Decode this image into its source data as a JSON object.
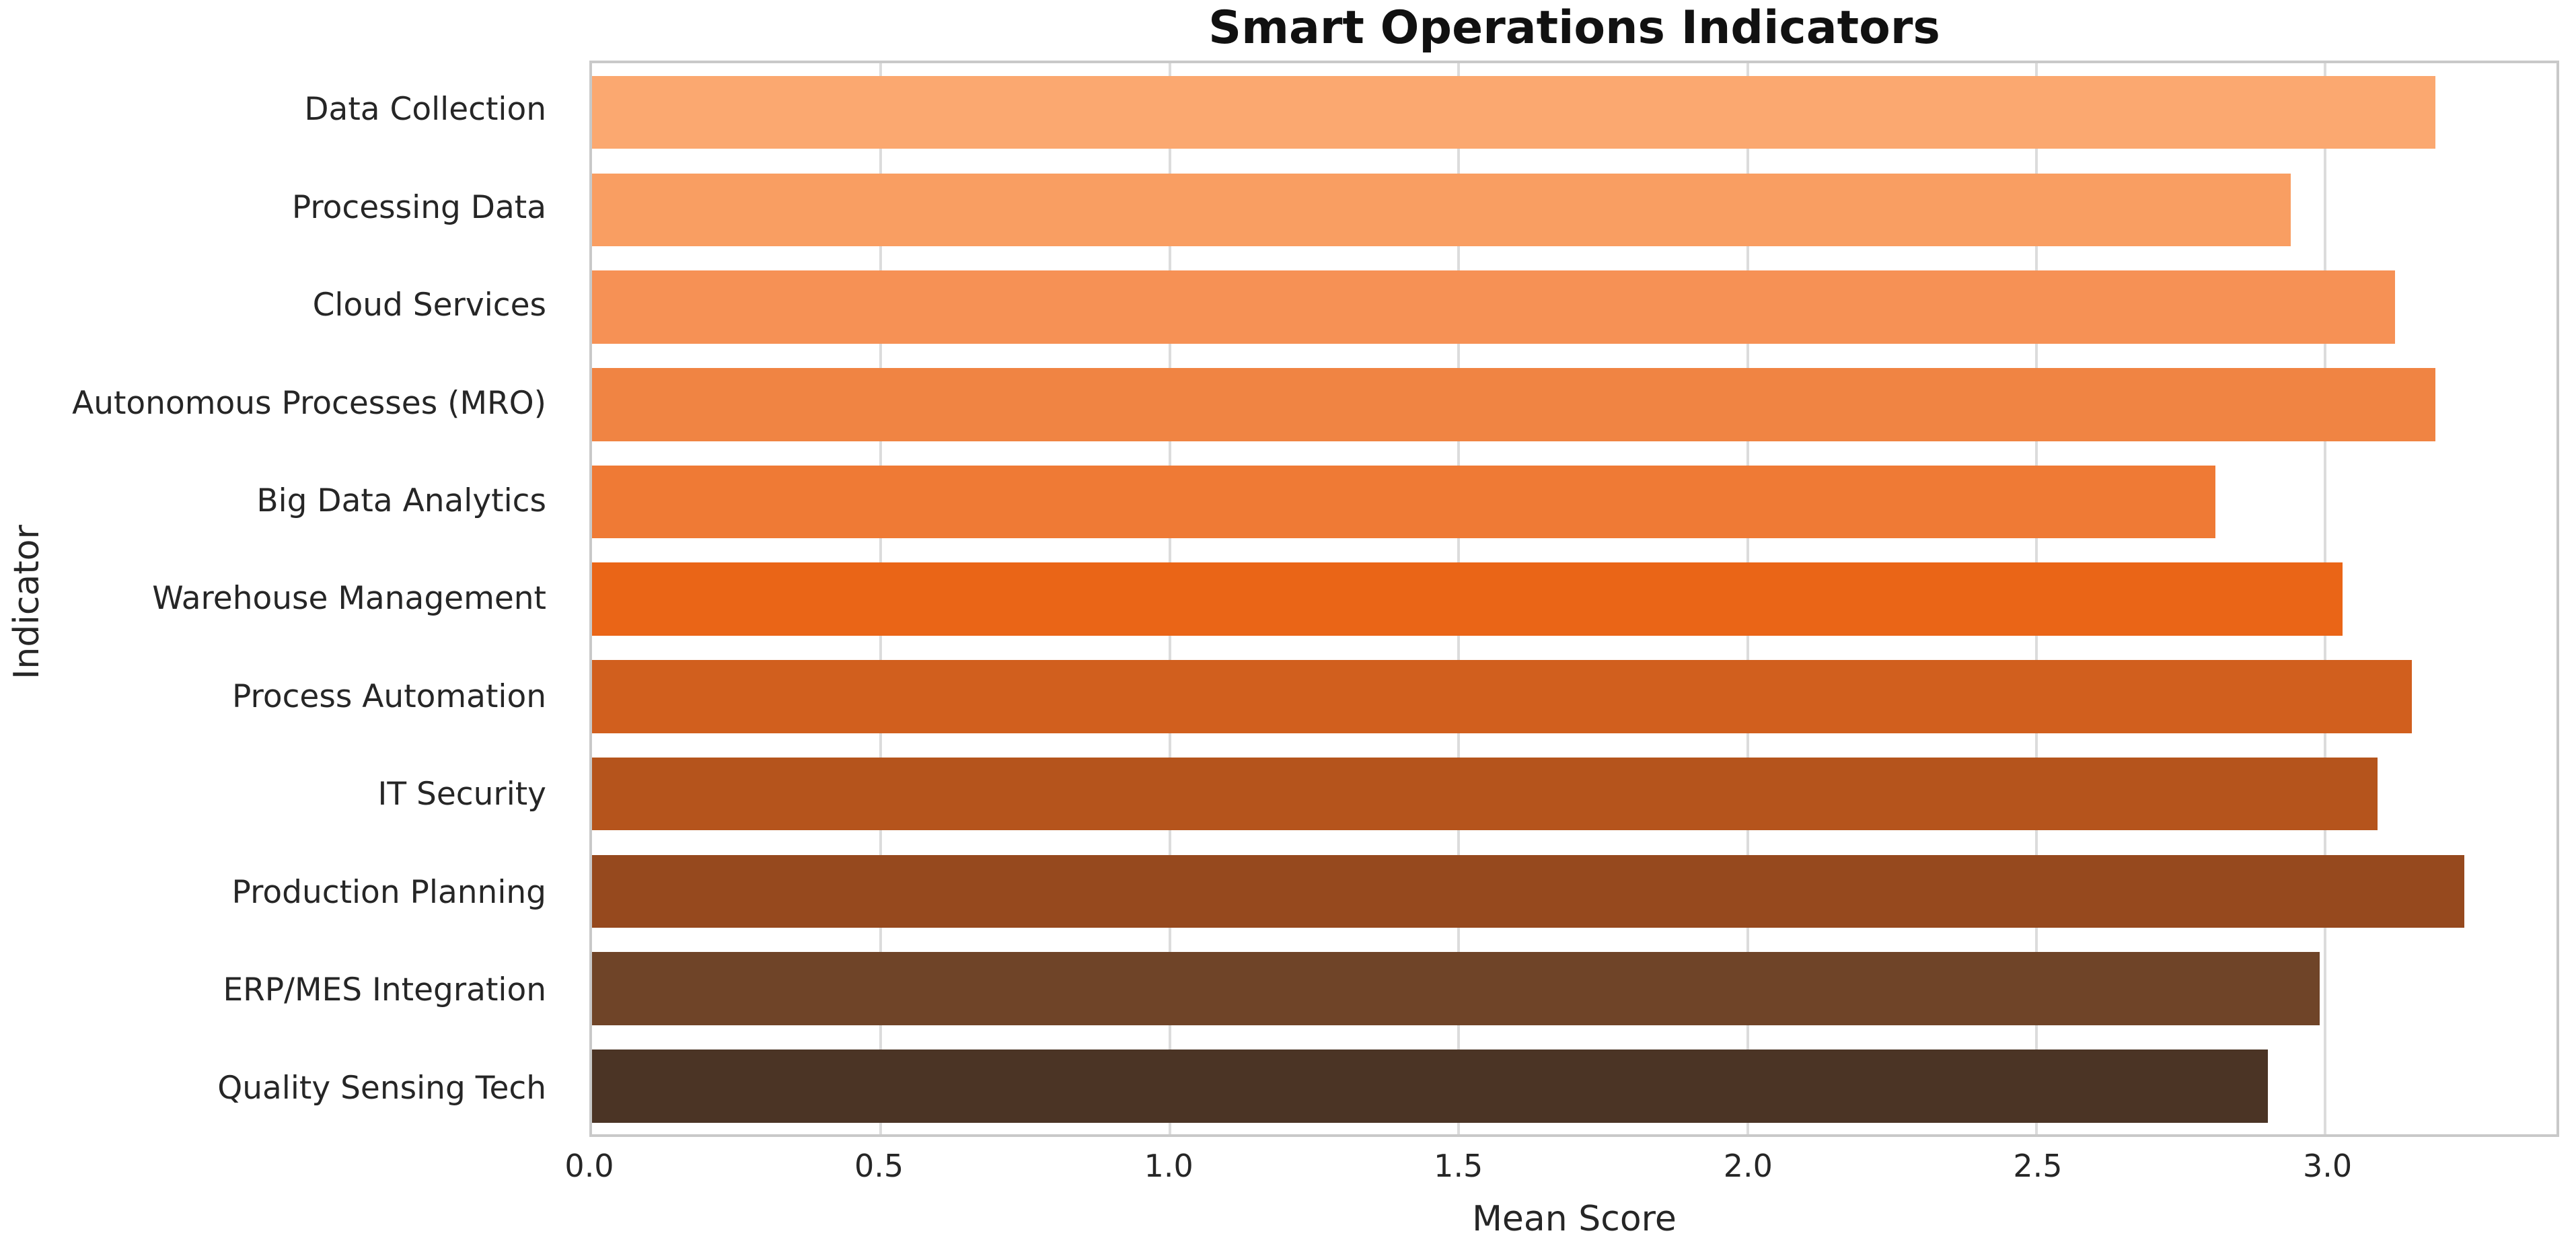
{
  "title": "Smart Operations Indicators",
  "chart_data": {
    "type": "bar",
    "orientation": "horizontal",
    "title": "Smart Operations Indicators",
    "xlabel": "Mean Score",
    "ylabel": "Indicator",
    "categories": [
      "Data Collection",
      "Processing Data",
      "Cloud Services",
      "Autonomous Processes (MRO)",
      "Big Data Analytics",
      "Warehouse Management",
      "Process Automation",
      "IT Security",
      "Production Planning",
      "ERP/MES Integration",
      "Quality Sensing Tech"
    ],
    "values": [
      3.19,
      2.94,
      3.12,
      3.19,
      2.81,
      3.03,
      3.15,
      3.09,
      3.24,
      2.99,
      2.9
    ],
    "bar_colors": [
      "#FBA870",
      "#F99E62",
      "#F69155",
      "#F08443",
      "#EF7A35",
      "#EA6517",
      "#D15F1E",
      "#B5541C",
      "#96491E",
      "#6F4428",
      "#4B3425"
    ],
    "xlim": [
      0,
      3.4
    ],
    "xticks": [
      0,
      0.5,
      1,
      1.5,
      2,
      2.5,
      3
    ],
    "xtick_labels": [
      "0.0",
      "0.5",
      "1.0",
      "1.5",
      "2.0",
      "2.5",
      "3.0"
    ],
    "grid": {
      "axis": "x",
      "color": "#DCDCDC"
    },
    "frame_color": "#C9C9C9",
    "background": "#FFFFFF",
    "bar_height_fraction": 0.75,
    "legend": null
  }
}
